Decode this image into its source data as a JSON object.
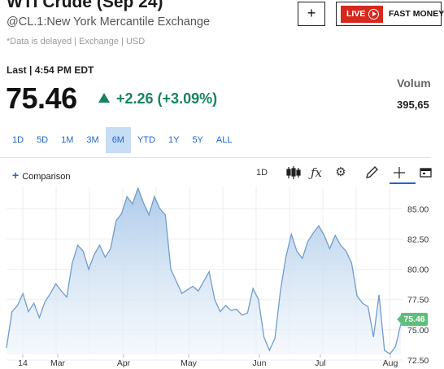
{
  "header": {
    "title": "WTI Crude (Sep 24)",
    "subtitle": "@CL.1:New York Mercantile Exchange",
    "delay_note": "*Data is delayed | Exchange | USD",
    "add_label": "+",
    "live_label": "LIVE",
    "live_show": "FAST MONEY"
  },
  "quote": {
    "last_label": "Last | 4:54 PM EDT",
    "price": "75.46",
    "change": "+2.26 (+3.09%)",
    "change_color": "#16845e",
    "volume_label": "Volum",
    "volume_value": "395,65"
  },
  "ranges": [
    {
      "label": "1D",
      "active": false
    },
    {
      "label": "5D",
      "active": false
    },
    {
      "label": "1M",
      "active": false
    },
    {
      "label": "3M",
      "active": false
    },
    {
      "label": "6M",
      "active": true
    },
    {
      "label": "YTD",
      "active": false
    },
    {
      "label": "1Y",
      "active": false
    },
    {
      "label": "5Y",
      "active": false
    },
    {
      "label": "ALL",
      "active": false
    }
  ],
  "toolbar": {
    "comparison_label": "Comparison",
    "interval_label": "1D",
    "icons": [
      "candlestick-icon",
      "function-icon",
      "gear-icon",
      "pencil-icon",
      "crosshair-icon",
      "calendar-icon"
    ]
  },
  "chart_data": {
    "type": "area",
    "title": "",
    "xlabel": "",
    "ylabel": "",
    "x_ticks": [
      "14",
      "Mar",
      "Apr",
      "May",
      "Jun",
      "Jul",
      "Aug"
    ],
    "y_ticks": [
      "85.00",
      "82.50",
      "80.00",
      "77.50",
      "75.00",
      "72.50"
    ],
    "ylim": [
      72.5,
      86.5
    ],
    "current_price_label": "75.46",
    "line_color": "#6f9dcc",
    "fill_color": "#c9dcf0",
    "series": [
      {
        "values": [
          73.5,
          76.5,
          77.0,
          78.0,
          76.5,
          77.2,
          76.0,
          77.3,
          78.0,
          78.8,
          78.2,
          77.7,
          80.5,
          82.0,
          81.5,
          80.0,
          81.2,
          82.0,
          81.0,
          81.7,
          84.0,
          84.6,
          86.0,
          85.4,
          86.7,
          85.5,
          84.5,
          86.0,
          85.0,
          84.5,
          80.0,
          79.0,
          78.0,
          78.3,
          78.6,
          78.2,
          79.0,
          79.8,
          77.5,
          76.5,
          77.0,
          76.6,
          76.7,
          76.2,
          76.4,
          78.4,
          77.5,
          74.4,
          73.3,
          74.3,
          78.2,
          81.0,
          82.9,
          81.5,
          80.9,
          82.3,
          83.0,
          83.6,
          82.8,
          81.7,
          82.8,
          82.0,
          81.5,
          80.5,
          77.8,
          77.2,
          76.9,
          74.4,
          77.9,
          73.3,
          73.0,
          73.6,
          75.5
        ]
      }
    ]
  }
}
